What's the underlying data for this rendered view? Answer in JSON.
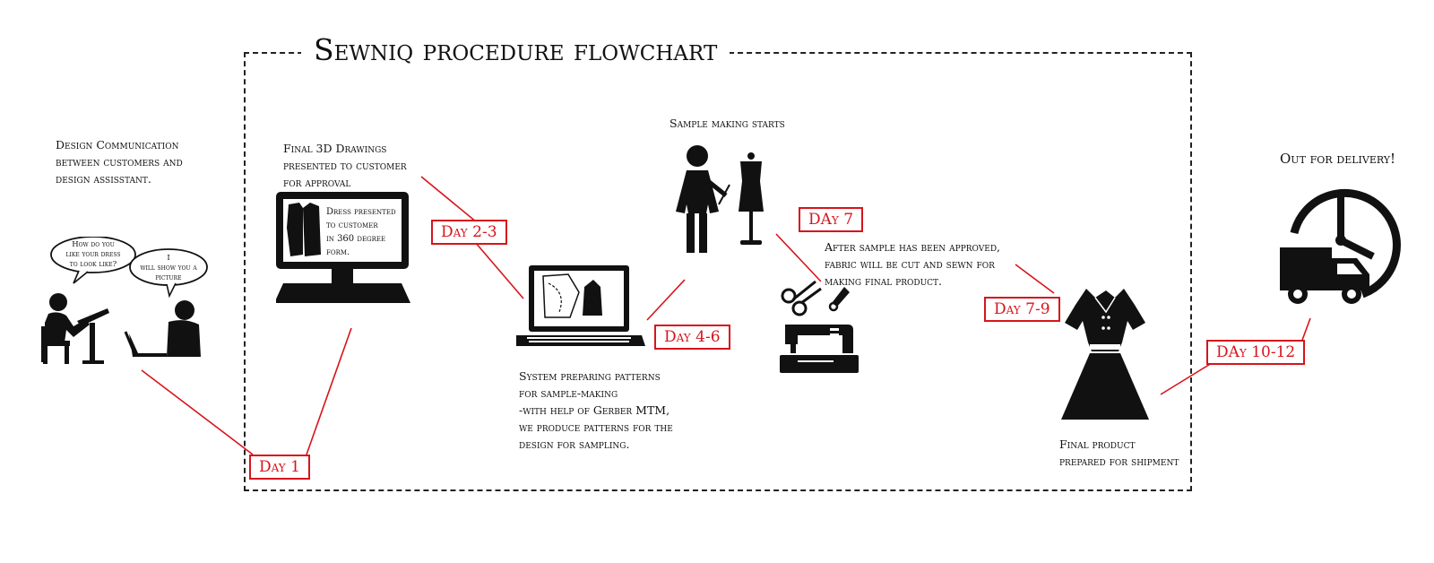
{
  "title": "Sewniq procedure flowchart",
  "colors": {
    "accent": "#d6141b",
    "ink": "#111111"
  },
  "steps": {
    "design_comm": "Design Communication\nbetween customers and\ndesign assisstant.",
    "bubble_customer": "How do you\nlike your dress\nto look like?",
    "bubble_assistant": "I\nwill show you a\npicture",
    "final_3d": "Final 3D Drawings\npresented to customer\nfor approval",
    "screen_text": "Dress presented\nto customer\nin 360 degree\nform.",
    "system_patterns": "System preparing patterns\nfor sample-making\n-with help of Gerber MTM,\nwe produce patterns for the\ndesign for sampling.",
    "sample_starts": "Sample making starts",
    "after_sample": "After sample has been approved,\nfabric will be cut and sewn for\nmaking final product.",
    "final_product": "Final product\nprepared for shipment",
    "delivery": "Out for delivery!"
  },
  "days": {
    "d1": "Day 1",
    "d2": "Day 2-3",
    "d3": "Day 4-6",
    "d4": "DAy 7",
    "d5": "Day 7-9",
    "d6": "DAy 10-12"
  },
  "icons": {
    "people": "customer-and-assistant-icon",
    "monitor": "desktop-computer-icon",
    "laptop": "laptop-pattern-icon",
    "tailor": "tailor-with-mannequin-icon",
    "tools": "scissors-and-sewing-machine-icon",
    "dress": "dress-icon",
    "delivery": "delivery-truck-clock-icon"
  }
}
